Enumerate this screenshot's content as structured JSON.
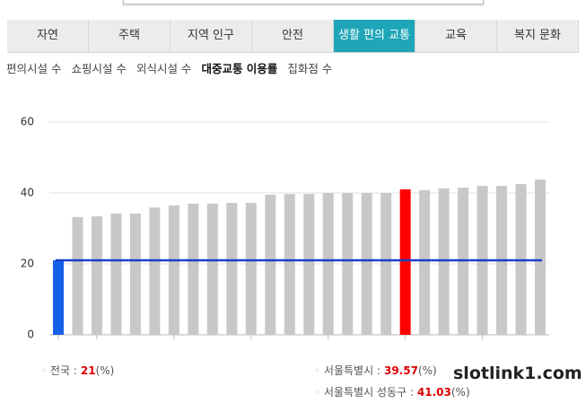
{
  "tabs": [
    "자연",
    "주택",
    "지역 인구",
    "안전",
    "생활 편의 교통",
    "교육",
    "복지 문화"
  ],
  "active_tab": 4,
  "subtabs": [
    "편의시설 수",
    "쇼핑시설 수",
    "외식시설 수",
    "대중교통 이용률",
    "집화점 수"
  ],
  "active_subtab": 3,
  "chart_data": {
    "type": "bar",
    "categories": [
      null,
      null,
      null,
      null,
      null,
      null,
      null,
      null,
      null,
      null,
      null,
      null,
      null,
      null,
      null,
      null,
      null,
      null,
      null,
      null,
      null,
      null,
      null,
      null,
      null,
      null
    ],
    "values": [
      21,
      33.2,
      33.4,
      34.2,
      34.2,
      35.9,
      36.5,
      37.0,
      37.0,
      37.2,
      37.2,
      39.5,
      39.7,
      39.7,
      40.0,
      40.0,
      40.0,
      40.0,
      41.03,
      40.8,
      41.3,
      41.5,
      42.0,
      42.0,
      42.5,
      43.8
    ],
    "colors": [
      "#1560e8",
      "#c8c8c8",
      "#c8c8c8",
      "#c8c8c8",
      "#c8c8c8",
      "#c8c8c8",
      "#c8c8c8",
      "#c8c8c8",
      "#c8c8c8",
      "#c8c8c8",
      "#c8c8c8",
      "#c8c8c8",
      "#c8c8c8",
      "#c8c8c8",
      "#c8c8c8",
      "#c8c8c8",
      "#c8c8c8",
      "#c8c8c8",
      "#ff0000",
      "#c8c8c8",
      "#c8c8c8",
      "#c8c8c8",
      "#c8c8c8",
      "#c8c8c8",
      "#c8c8c8",
      "#c8c8c8"
    ],
    "ylim": [
      0,
      60
    ],
    "yticks": [
      0,
      20,
      40,
      60
    ],
    "grid": true,
    "reference_line": {
      "value": 21,
      "color": "#1b3fc7"
    }
  },
  "summary": [
    {
      "label": "전국 :",
      "value": 21,
      "unit": "(%)"
    },
    {
      "label": "서울특별시 :",
      "value": 39.57,
      "unit": "(%)"
    },
    {
      "label": "서울특별시 성동구 :",
      "value": 41.03,
      "unit": "(%)"
    }
  ],
  "watermark": "slotlink1.com"
}
